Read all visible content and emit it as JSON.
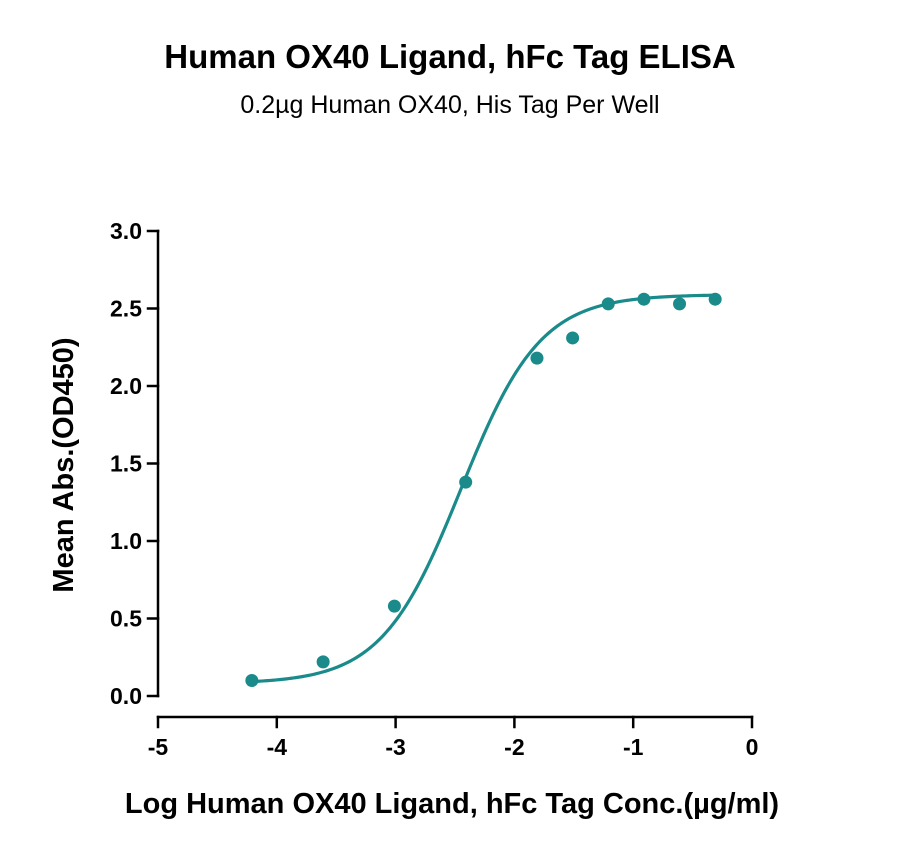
{
  "chart_data": {
    "type": "scatter",
    "title": "Human OX40 Ligand, hFc Tag ELISA",
    "subtitle": "0.2µg Human OX40, His Tag Per Well",
    "xlabel": "Log Human OX40 Ligand, hFc Tag Conc.(µg/ml)",
    "ylabel": "Mean Abs.(OD450)",
    "xlim": [
      -5,
      0
    ],
    "ylim": [
      0,
      3.0
    ],
    "x_ticks": [
      -5,
      -4,
      -3,
      -2,
      -1,
      0
    ],
    "x_tick_labels": [
      "-5",
      "-4",
      "-3",
      "-2",
      "-1",
      "0"
    ],
    "y_ticks": [
      0,
      0.5,
      1.0,
      1.5,
      2.0,
      2.5,
      3.0
    ],
    "y_tick_labels": [
      "0.0",
      "0.5",
      "1.0",
      "1.5",
      "2.0",
      "2.5",
      "3.0"
    ],
    "grid": false,
    "legend": "none",
    "color": "#1a8a8a",
    "series": [
      {
        "x": [
          -4.21,
          -3.61,
          -3.01,
          -2.41,
          -1.81,
          -1.51,
          -1.21,
          -0.91,
          -0.61,
          -0.31
        ],
        "y": [
          0.1,
          0.22,
          0.58,
          1.38,
          2.18,
          2.31,
          2.53,
          2.56,
          2.53,
          2.56
        ]
      }
    ],
    "fit_curve": {
      "model": "4PL",
      "bottom": 0.08,
      "top": 2.59,
      "log_ec50": -2.45,
      "hill_slope": 1.3,
      "x_range": [
        -4.21,
        -0.31
      ]
    }
  }
}
